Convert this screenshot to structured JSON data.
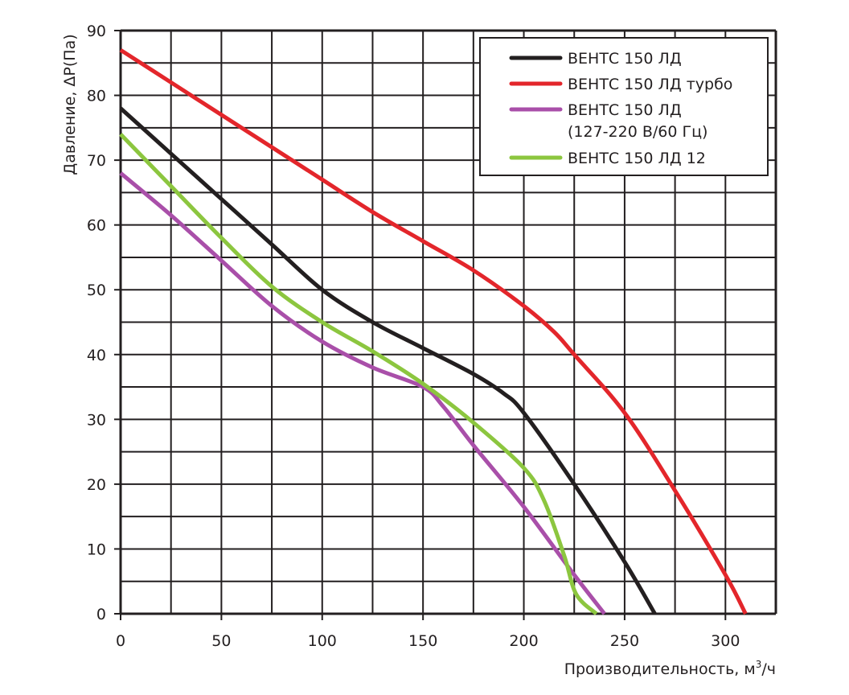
{
  "chart_data": {
    "type": "line",
    "title": "",
    "xlabel": "Производительность, м³/ч",
    "xlabel_main": "Производительность, м",
    "xlabel_sup": "3",
    "xlabel_tail": "/ч",
    "ylabel": "Давление, ΔP(Па)",
    "xlim": [
      0,
      325
    ],
    "ylim": [
      0,
      90
    ],
    "x_ticks": [
      0,
      50,
      100,
      150,
      200,
      250,
      300
    ],
    "y_ticks": [
      0,
      10,
      20,
      30,
      40,
      50,
      60,
      70,
      80,
      90
    ],
    "x_grid_step": 25,
    "y_grid_step": 5,
    "grid": true,
    "legend_position": "top-right",
    "series": [
      {
        "name": "ВЕНТС 150 ЛД",
        "color": "#231f20",
        "x": [
          0,
          25,
          50,
          75,
          100,
          125,
          150,
          175,
          190,
          200,
          225,
          250,
          265
        ],
        "y": [
          78,
          71,
          64,
          57,
          50,
          45,
          41,
          37,
          34,
          31,
          20,
          8,
          0
        ]
      },
      {
        "name": "ВЕНТС 150 ЛД турбо",
        "color": "#e3262b",
        "x": [
          0,
          25,
          50,
          75,
          100,
          125,
          150,
          175,
          200,
          215,
          225,
          250,
          275,
          300,
          310
        ],
        "y": [
          87,
          82,
          77,
          72,
          67,
          62,
          57.5,
          53,
          47.5,
          43.5,
          40,
          31,
          19,
          6,
          0
        ]
      },
      {
        "name": "ВЕНТС 150 ЛД",
        "name_line2": "(127-220 В/60 Гц)",
        "color": "#a94fa9",
        "x": [
          0,
          25,
          50,
          75,
          100,
          125,
          150,
          160,
          175,
          200,
          225,
          240
        ],
        "y": [
          68,
          61.5,
          54.5,
          47.5,
          42,
          38,
          35,
          32,
          26,
          16.5,
          6,
          0
        ]
      },
      {
        "name": "ВЕНТС 150 ЛД 12",
        "color": "#8cc63f",
        "x": [
          0,
          25,
          50,
          75,
          100,
          125,
          150,
          175,
          200,
          210,
          220,
          226,
          236
        ],
        "y": [
          74,
          66,
          58,
          50.5,
          45,
          40.5,
          35.5,
          29.5,
          22.5,
          17.5,
          9,
          3,
          0
        ]
      }
    ]
  }
}
